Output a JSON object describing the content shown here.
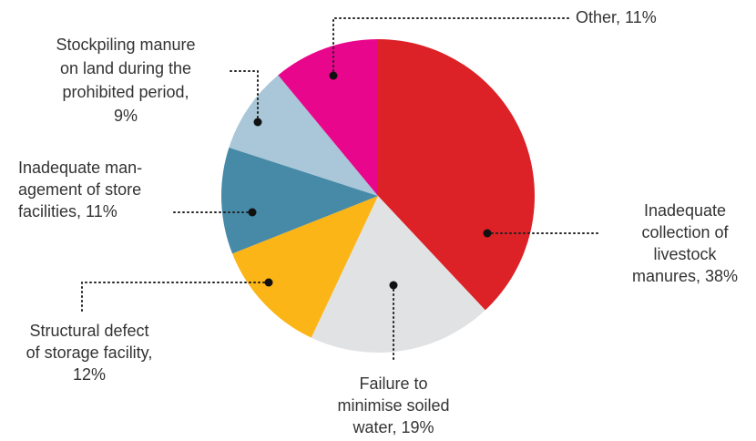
{
  "chart_data": {
    "type": "pie",
    "categories": [
      [
        "Inadequate",
        "collection of",
        "livestock",
        "manures, 38%"
      ],
      [
        "Failure to",
        "minimise soiled",
        "water, 19%"
      ],
      [
        "Structural defect",
        "of storage facility,",
        "12%"
      ],
      [
        "Inadequate man-",
        "agement of store",
        "facilities, 11%"
      ],
      [
        "Stockpiling manure",
        "on land during the",
        "prohibited period,",
        "9%"
      ],
      [
        "Other, 11%"
      ]
    ],
    "values": [
      38,
      19,
      12,
      11,
      9,
      11
    ],
    "colors": [
      "#dc2127",
      "#e1e2e4",
      "#fbb516",
      "#468aa8",
      "#a9c7d8",
      "#e8078c"
    ]
  }
}
